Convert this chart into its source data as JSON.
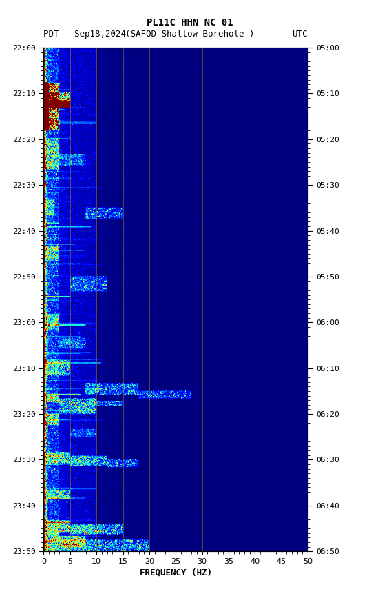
{
  "title_line1": "PL11C HHN NC 01",
  "title_line2_left": "PDT   Sep18,2024",
  "title_line2_mid": "(SAFOD Shallow Borehole )",
  "title_line2_right": "UTC",
  "xlabel": "FREQUENCY (HZ)",
  "freq_min": 0,
  "freq_max": 50,
  "time_labels_left": [
    "22:00",
    "22:10",
    "22:20",
    "22:30",
    "22:40",
    "22:50",
    "23:00",
    "23:10",
    "23:20",
    "23:30",
    "23:40",
    "23:50"
  ],
  "time_labels_right": [
    "05:00",
    "05:10",
    "05:20",
    "05:30",
    "05:40",
    "05:50",
    "06:00",
    "06:10",
    "06:20",
    "06:30",
    "06:40",
    "06:50"
  ],
  "freq_ticks_major": [
    0,
    5,
    10,
    15,
    20,
    25,
    30,
    35,
    40,
    45,
    50
  ],
  "vert_grid_lines": [
    5,
    10,
    15,
    20,
    25,
    30,
    35,
    40,
    45
  ],
  "background_color": "#ffffff",
  "colormap": "jet",
  "fig_width": 5.52,
  "fig_height": 8.64,
  "dpi": 100
}
